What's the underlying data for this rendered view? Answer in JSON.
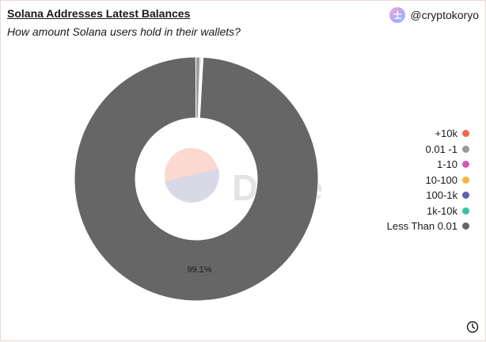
{
  "header": {
    "title": "Solana Addresses Latest Balances",
    "subtitle": "How amount Solana users hold in their wallets?",
    "author": "@cryptokoryo",
    "avatar_glyph": "士"
  },
  "watermark": {
    "text": "Dune"
  },
  "chart_data": {
    "type": "pie",
    "donut": true,
    "categories": [
      "+10k",
      "0.01 -1",
      "1-10",
      "10-100",
      "100-1k",
      "1k-10k",
      "Less Than 0.01"
    ],
    "values": [
      0.01,
      0.55,
      0.15,
      0.09,
      0.05,
      0.05,
      99.1
    ],
    "colors": [
      "#f4664a",
      "#999999",
      "#d65ab6",
      "#f5b73b",
      "#5b62b3",
      "#3dbfa4",
      "#666666"
    ],
    "data_labels": [
      "",
      "",
      "",
      "",
      "",
      "",
      "99.1%"
    ],
    "legend_position": "right"
  },
  "footer": {
    "icon": "clock-icon"
  }
}
